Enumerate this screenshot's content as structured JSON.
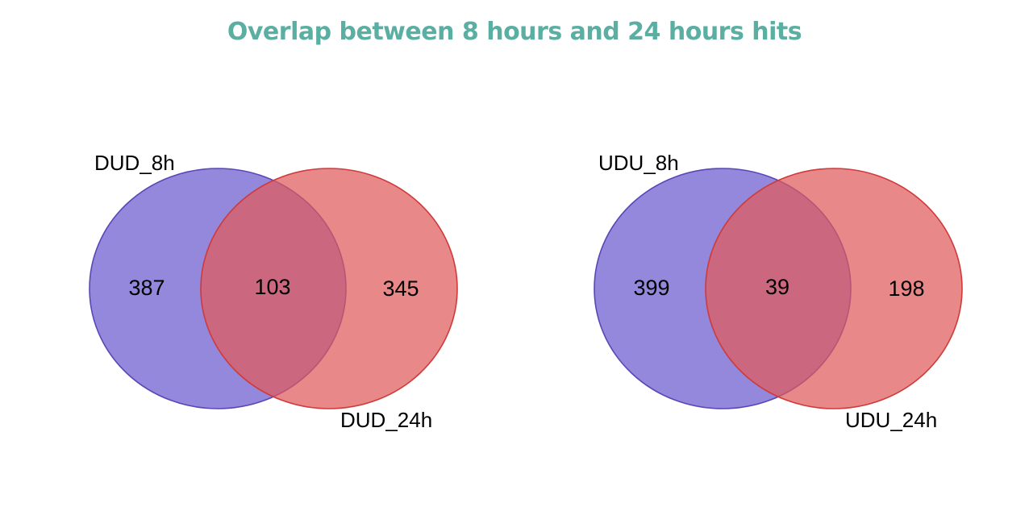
{
  "title": "Overlap between 8 hours and 24 hours hits",
  "colors": {
    "title": "#5aaea2",
    "set_a_fill": "#6a5acd",
    "set_a_stroke": "#5b46b8",
    "set_b_fill": "#e05a5a",
    "set_b_stroke": "#d03a3a",
    "text": "#000000"
  },
  "diagrams": [
    {
      "set_a_label": "DUD_8h",
      "set_b_label": "DUD_24h",
      "only_a": "387",
      "overlap": "103",
      "only_b": "345"
    },
    {
      "set_a_label": "UDU_8h",
      "set_b_label": "UDU_24h",
      "only_a": "399",
      "overlap": "39",
      "only_b": "198"
    }
  ]
}
